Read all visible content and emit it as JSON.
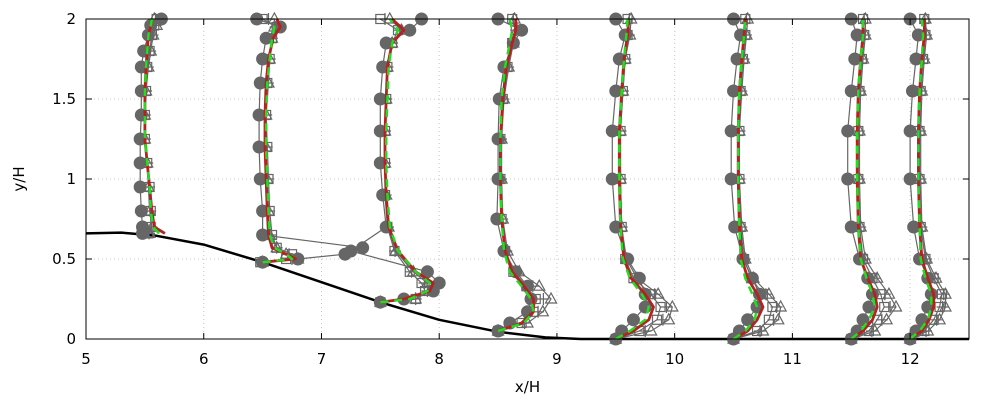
{
  "chart_data": {
    "type": "line",
    "title": "",
    "xlabel": "x/H",
    "ylabel": "y/H",
    "xlim": [
      5,
      12.5
    ],
    "ylim": [
      0,
      2
    ],
    "xticks": [
      "5",
      "6",
      "7",
      "8",
      "9",
      "10",
      "11",
      "12"
    ],
    "yticks": [
      "0",
      "0.5",
      "1",
      "1.5",
      "2"
    ],
    "grid": true,
    "colors": {
      "markers": "#666666",
      "red_curve": "#b22222",
      "green_curve": "#22dd22",
      "hill": "#000000"
    },
    "hill_profile": {
      "x": [
        5.0,
        5.3,
        5.6,
        6.0,
        6.5,
        7.0,
        7.5,
        8.0,
        8.5,
        8.9,
        9.2,
        10.0,
        11.0,
        12.5
      ],
      "y": [
        0.66,
        0.665,
        0.645,
        0.59,
        0.48,
        0.355,
        0.23,
        0.12,
        0.045,
        0.01,
        0.0,
        0.0,
        0.0,
        0.0
      ]
    },
    "stations": [
      {
        "x0": 5.5,
        "profile_y": [
          0.66,
          0.7,
          0.8,
          0.95,
          1.1,
          1.25,
          1.4,
          1.55,
          1.7,
          1.8,
          1.9,
          1.96,
          2.0
        ],
        "red_dx": [
          0.17,
          0.08,
          0.06,
          0.04,
          0.02,
          0.0,
          0.0,
          0.0,
          0.01,
          0.02,
          0.03,
          0.05,
          0.06
        ],
        "green_dx": [
          0.12,
          0.07,
          0.05,
          0.04,
          0.02,
          0.0,
          0.0,
          0.0,
          0.01,
          0.02,
          0.03,
          0.05,
          0.06
        ],
        "circle_dx": [
          -0.02,
          -0.02,
          -0.03,
          -0.04,
          -0.04,
          -0.04,
          -0.03,
          -0.03,
          -0.03,
          -0.01,
          0.03,
          0.05,
          0.14
        ],
        "square_dx": [
          0.03,
          0.05,
          0.05,
          0.04,
          0.02,
          0.0,
          0.0,
          0.01,
          0.02,
          0.04,
          0.06,
          0.08,
          0.1
        ],
        "triangle_dx": [
          0.04,
          0.06,
          0.04,
          0.03,
          0.02,
          0.0,
          0.0,
          0.01,
          0.03,
          0.05,
          0.07,
          0.1,
          0.08
        ]
      },
      {
        "x0": 6.5,
        "profile_y": [
          0.48,
          0.5,
          0.53,
          0.57,
          0.65,
          0.8,
          1.0,
          1.2,
          1.4,
          1.6,
          1.75,
          1.88,
          1.95,
          2.0
        ],
        "red_dx": [
          0.0,
          0.28,
          0.2,
          0.08,
          0.05,
          0.04,
          0.03,
          0.02,
          0.02,
          0.03,
          0.05,
          0.09,
          0.15,
          0.12
        ],
        "green_dx": [
          0.0,
          0.25,
          0.2,
          0.1,
          0.06,
          0.05,
          0.04,
          0.03,
          0.03,
          0.04,
          0.06,
          0.08,
          0.1,
          0.08
        ],
        "circle_dx": [
          0.0,
          0.3,
          0.7,
          0.85,
          0.0,
          0.0,
          -0.02,
          -0.03,
          -0.03,
          -0.02,
          0.0,
          0.03,
          0.15,
          -0.05
        ],
        "square_dx": [
          -0.02,
          0.2,
          0.25,
          0.12,
          0.08,
          0.06,
          0.05,
          0.04,
          0.03,
          0.04,
          0.06,
          0.08,
          0.12,
          0.0
        ],
        "triangle_dx": [
          0.0,
          0.3,
          0.2,
          0.12,
          0.06,
          0.05,
          0.04,
          0.03,
          0.03,
          0.05,
          0.06,
          0.08,
          0.1,
          0.1
        ]
      },
      {
        "x0": 7.5,
        "profile_y": [
          0.23,
          0.25,
          0.3,
          0.35,
          0.42,
          0.55,
          0.7,
          0.9,
          1.1,
          1.3,
          1.5,
          1.7,
          1.85,
          1.93,
          2.0
        ],
        "red_dx": [
          0.0,
          0.2,
          0.42,
          0.45,
          0.3,
          0.15,
          0.07,
          0.05,
          0.04,
          0.04,
          0.05,
          0.06,
          0.1,
          0.2,
          0.1
        ],
        "green_dx": [
          0.0,
          0.25,
          0.4,
          0.42,
          0.3,
          0.15,
          0.08,
          0.06,
          0.05,
          0.05,
          0.06,
          0.07,
          0.1,
          0.15,
          0.08
        ],
        "circle_dx": [
          0.0,
          0.2,
          0.45,
          0.5,
          0.4,
          -0.25,
          0.05,
          0.02,
          0.0,
          0.0,
          0.0,
          0.02,
          0.05,
          0.25,
          0.35
        ],
        "square_dx": [
          0.0,
          0.3,
          0.38,
          0.35,
          0.25,
          0.12,
          0.06,
          0.04,
          0.04,
          0.04,
          0.05,
          0.06,
          0.1,
          0.15,
          0.0
        ],
        "triangle_dx": [
          0.0,
          0.3,
          0.42,
          0.4,
          0.28,
          0.13,
          0.07,
          0.05,
          0.04,
          0.04,
          0.05,
          0.06,
          0.1,
          0.18,
          0.08
        ]
      },
      {
        "x0": 8.5,
        "profile_y": [
          0.05,
          0.1,
          0.17,
          0.25,
          0.33,
          0.42,
          0.55,
          0.75,
          1.0,
          1.25,
          1.5,
          1.7,
          1.85,
          1.93,
          2.0
        ],
        "red_dx": [
          0.0,
          0.2,
          0.3,
          0.3,
          0.22,
          0.12,
          0.06,
          0.03,
          0.02,
          0.02,
          0.04,
          0.07,
          0.12,
          0.15,
          0.15
        ],
        "green_dx": [
          0.0,
          0.22,
          0.3,
          0.28,
          0.2,
          0.1,
          0.05,
          0.03,
          0.02,
          0.02,
          0.03,
          0.06,
          0.1,
          0.12,
          0.1
        ],
        "circle_dx": [
          0.0,
          0.1,
          0.25,
          0.28,
          0.25,
          0.15,
          0.05,
          -0.01,
          0.0,
          0.0,
          0.01,
          0.05,
          0.13,
          0.2,
          0.0
        ],
        "square_dx": [
          0.0,
          0.2,
          0.3,
          0.32,
          0.24,
          0.13,
          0.06,
          0.03,
          0.02,
          0.02,
          0.04,
          0.08,
          0.12,
          0.15,
          0.12
        ],
        "triangle_dx": [
          0.0,
          0.25,
          0.38,
          0.45,
          0.35,
          0.18,
          0.08,
          0.04,
          0.03,
          0.03,
          0.05,
          0.09,
          0.13,
          0.16,
          0.14
        ]
      },
      {
        "x0": 9.5,
        "profile_y": [
          0.0,
          0.05,
          0.12,
          0.2,
          0.28,
          0.38,
          0.5,
          0.7,
          1.0,
          1.3,
          1.55,
          1.75,
          1.9,
          2.0
        ],
        "red_dx": [
          0.0,
          0.15,
          0.28,
          0.32,
          0.25,
          0.13,
          0.07,
          0.04,
          0.03,
          0.03,
          0.05,
          0.07,
          0.1,
          0.11
        ],
        "green_dx": [
          0.0,
          0.12,
          0.25,
          0.28,
          0.22,
          0.12,
          0.06,
          0.04,
          0.03,
          0.03,
          0.05,
          0.07,
          0.09,
          0.1
        ],
        "circle_dx": [
          0.0,
          0.05,
          0.15,
          0.25,
          0.25,
          0.2,
          0.1,
          0.0,
          -0.03,
          -0.03,
          0.0,
          0.03,
          0.08,
          0.0
        ],
        "square_dx": [
          0.0,
          0.2,
          0.35,
          0.38,
          0.3,
          0.15,
          0.08,
          0.05,
          0.04,
          0.04,
          0.06,
          0.08,
          0.1,
          0.1
        ],
        "triangle_dx": [
          0.0,
          0.3,
          0.45,
          0.48,
          0.36,
          0.18,
          0.09,
          0.05,
          0.04,
          0.04,
          0.06,
          0.08,
          0.12,
          0.13
        ]
      },
      {
        "x0": 10.5,
        "profile_y": [
          0.0,
          0.05,
          0.12,
          0.2,
          0.28,
          0.38,
          0.5,
          0.7,
          1.0,
          1.3,
          1.55,
          1.75,
          1.9,
          2.0
        ],
        "red_dx": [
          0.0,
          0.12,
          0.2,
          0.25,
          0.2,
          0.12,
          0.07,
          0.05,
          0.04,
          0.04,
          0.05,
          0.07,
          0.09,
          0.1
        ],
        "green_dx": [
          0.0,
          0.1,
          0.18,
          0.2,
          0.16,
          0.1,
          0.06,
          0.05,
          0.04,
          0.04,
          0.05,
          0.07,
          0.09,
          0.1
        ],
        "circle_dx": [
          0.0,
          0.05,
          0.12,
          0.2,
          0.22,
          0.16,
          0.08,
          0.01,
          -0.02,
          -0.02,
          0.0,
          0.03,
          0.06,
          0.0
        ],
        "square_dx": [
          0.0,
          0.2,
          0.3,
          0.33,
          0.25,
          0.15,
          0.09,
          0.06,
          0.05,
          0.05,
          0.06,
          0.08,
          0.1,
          0.1
        ],
        "triangle_dx": [
          0.0,
          0.25,
          0.38,
          0.4,
          0.3,
          0.17,
          0.1,
          0.07,
          0.05,
          0.05,
          0.07,
          0.09,
          0.11,
          0.12
        ]
      },
      {
        "x0": 11.5,
        "profile_y": [
          0.0,
          0.05,
          0.12,
          0.2,
          0.28,
          0.38,
          0.5,
          0.7,
          1.0,
          1.3,
          1.55,
          1.75,
          1.9,
          2.0
        ],
        "red_dx": [
          0.0,
          0.1,
          0.18,
          0.22,
          0.2,
          0.14,
          0.08,
          0.06,
          0.05,
          0.05,
          0.06,
          0.08,
          0.1,
          0.1
        ],
        "green_dx": [
          0.0,
          0.08,
          0.15,
          0.2,
          0.18,
          0.13,
          0.08,
          0.06,
          0.05,
          0.05,
          0.06,
          0.08,
          0.1,
          0.1
        ],
        "circle_dx": [
          0.0,
          0.05,
          0.1,
          0.15,
          0.18,
          0.14,
          0.07,
          0.0,
          -0.03,
          -0.03,
          0.0,
          0.03,
          0.05,
          0.0
        ],
        "square_dx": [
          0.0,
          0.15,
          0.22,
          0.28,
          0.25,
          0.18,
          0.1,
          0.07,
          0.06,
          0.06,
          0.07,
          0.09,
          0.11,
          0.1
        ],
        "triangle_dx": [
          0.0,
          0.2,
          0.3,
          0.38,
          0.32,
          0.22,
          0.12,
          0.08,
          0.07,
          0.07,
          0.08,
          0.1,
          0.12,
          0.12
        ]
      },
      {
        "x0": 12.0,
        "profile_y": [
          0.0,
          0.05,
          0.12,
          0.2,
          0.28,
          0.38,
          0.5,
          0.7,
          1.0,
          1.3,
          1.55,
          1.75,
          1.9,
          2.0
        ],
        "red_dx": [
          0.0,
          0.1,
          0.16,
          0.2,
          0.2,
          0.15,
          0.1,
          0.08,
          0.07,
          0.07,
          0.08,
          0.1,
          0.12,
          0.12
        ],
        "green_dx": [
          0.0,
          0.08,
          0.15,
          0.18,
          0.18,
          0.13,
          0.09,
          0.08,
          0.07,
          0.07,
          0.08,
          0.1,
          0.11,
          0.1
        ],
        "circle_dx": [
          0.0,
          0.05,
          0.1,
          0.15,
          0.18,
          0.15,
          0.08,
          0.03,
          0.0,
          0.0,
          0.02,
          0.05,
          0.07,
          0.0
        ],
        "square_dx": [
          0.0,
          0.12,
          0.2,
          0.25,
          0.27,
          0.2,
          0.13,
          0.09,
          0.08,
          0.08,
          0.09,
          0.11,
          0.13,
          0.12
        ],
        "triangle_dx": [
          0.0,
          0.15,
          0.25,
          0.3,
          0.3,
          0.22,
          0.14,
          0.1,
          0.09,
          0.09,
          0.1,
          0.12,
          0.14,
          0.13
        ]
      }
    ]
  }
}
